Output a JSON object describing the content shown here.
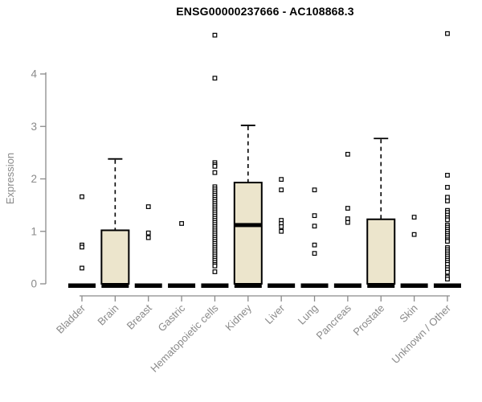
{
  "window": {
    "title": "ENSG00000237666 - AC108868.3"
  },
  "colors": {
    "box_fill": "#ece5cc",
    "box_stroke": "#000000",
    "zero_bar": "#000000",
    "axis": "#8a8a8a",
    "tick_text": "#8a8a8a",
    "title_text": "#000000",
    "outlier_fill": "#ffffff"
  },
  "chart_data": {
    "type": "boxplot",
    "title": "ENSG00000237666 - AC108868.3",
    "xlabel": "",
    "ylabel": "Expression",
    "ylim": [
      0,
      4.9
    ],
    "yticks": [
      0,
      1,
      2,
      3,
      4
    ],
    "grid": false,
    "legend": "none",
    "categories": [
      "Bladder",
      "Brain",
      "Breast",
      "Gastric",
      "Hematopoietic cells",
      "Kidney",
      "Liver",
      "Lung",
      "Pancreas",
      "Prostate",
      "Skin",
      "Unknown / Other"
    ],
    "boxes": [
      {
        "category": "Bladder",
        "q1": 0,
        "median": 0,
        "q3": 0,
        "whisker_low": 0,
        "whisker_high": 0,
        "outliers": [
          1.66,
          0.74,
          0.7,
          0.3
        ]
      },
      {
        "category": "Brain",
        "q1": 0,
        "median": 0,
        "q3": 1.02,
        "whisker_low": 0,
        "whisker_high": 2.38,
        "outliers": []
      },
      {
        "category": "Breast",
        "q1": 0,
        "median": 0,
        "q3": 0,
        "whisker_low": 0,
        "whisker_high": 0,
        "outliers": [
          1.47,
          0.97,
          0.88
        ]
      },
      {
        "category": "Gastric",
        "q1": 0,
        "median": 0,
        "q3": 0,
        "whisker_low": 0,
        "whisker_high": 0,
        "outliers": [
          1.15
        ]
      },
      {
        "category": "Hematopoietic cells",
        "q1": 0,
        "median": 0,
        "q3": 0,
        "whisker_low": 0,
        "whisker_high": 0,
        "outliers": [
          4.74,
          3.92,
          2.31,
          2.27,
          2.24,
          2.12,
          1.85,
          1.81,
          1.77,
          1.73,
          1.69,
          1.65,
          1.61,
          1.57,
          1.53,
          1.49,
          1.45,
          1.41,
          1.37,
          1.33,
          1.29,
          1.25,
          1.21,
          1.17,
          1.13,
          1.09,
          1.05,
          1.01,
          0.97,
          0.93,
          0.89,
          0.85,
          0.81,
          0.77,
          0.73,
          0.69,
          0.65,
          0.61,
          0.57,
          0.53,
          0.49,
          0.45,
          0.41,
          0.37,
          0.34,
          0.23
        ]
      },
      {
        "category": "Kidney",
        "q1": 0,
        "median": 1.12,
        "q3": 1.93,
        "whisker_low": 0,
        "whisker_high": 3.02,
        "outliers": []
      },
      {
        "category": "Liver",
        "q1": 0,
        "median": 0,
        "q3": 0,
        "whisker_low": 0,
        "whisker_high": 0,
        "outliers": [
          1.99,
          1.79,
          1.21,
          1.15,
          1.09,
          1.0
        ]
      },
      {
        "category": "Lung",
        "q1": 0,
        "median": 0,
        "q3": 0,
        "whisker_low": 0,
        "whisker_high": 0,
        "outliers": [
          1.79,
          1.3,
          1.1,
          0.74,
          0.58
        ]
      },
      {
        "category": "Pancreas",
        "q1": 0,
        "median": 0,
        "q3": 0,
        "whisker_low": 0,
        "whisker_high": 0,
        "outliers": [
          2.47,
          1.44,
          1.24,
          1.17
        ]
      },
      {
        "category": "Prostate",
        "q1": 0,
        "median": 0,
        "q3": 1.23,
        "whisker_low": 0,
        "whisker_high": 2.77,
        "outliers": []
      },
      {
        "category": "Skin",
        "q1": 0,
        "median": 0,
        "q3": 0,
        "whisker_low": 0,
        "whisker_high": 0,
        "outliers": [
          1.27,
          0.94
        ]
      },
      {
        "category": "Unknown / Other",
        "q1": 0,
        "median": 0,
        "q3": 0,
        "whisker_low": 0,
        "whisker_high": 0,
        "outliers": [
          4.77,
          2.07,
          1.84,
          1.65,
          1.58,
          1.4,
          1.36,
          1.31,
          1.26,
          1.22,
          1.12,
          1.08,
          1.04,
          1.0,
          0.96,
          0.92,
          0.88,
          0.84,
          0.81,
          0.69,
          0.65,
          0.61,
          0.57,
          0.53,
          0.49,
          0.45,
          0.41,
          0.37,
          0.31,
          0.27,
          0.22,
          0.13,
          0.09
        ]
      }
    ]
  }
}
